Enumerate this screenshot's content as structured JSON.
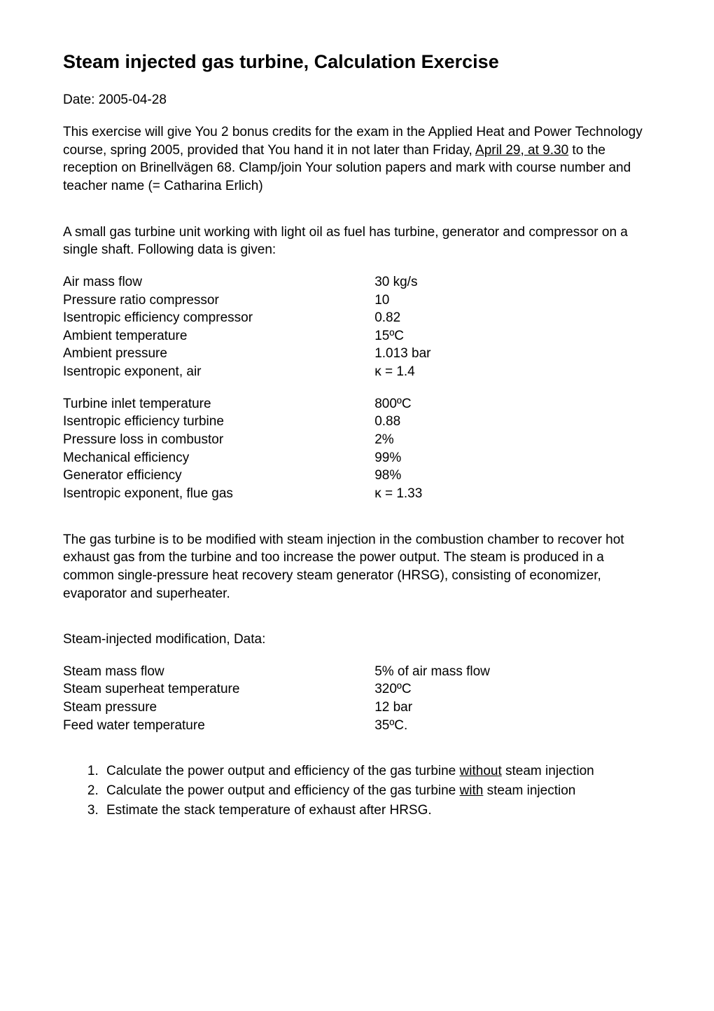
{
  "title": "Steam injected gas turbine, Calculation Exercise",
  "date_line": "Date: 2005-04-28",
  "intro_part1": "This exercise will give You 2 bonus credits for the exam in the Applied Heat and Power Technology course, spring 2005, provided that You hand it in not later than Friday, ",
  "intro_underlined": "April 29, at 9.30",
  "intro_part2": " to the reception on Brinellvägen 68. Clamp/join Your solution papers and mark with course number and teacher name (= Catharina Erlich)",
  "gt_desc": "A small gas turbine unit working with light oil as fuel has turbine, generator and compressor on a single shaft. Following data is given:",
  "block1": [
    {
      "label": "Air mass flow",
      "value": "30 kg/s"
    },
    {
      "label": "Pressure ratio compressor",
      "value": "10"
    },
    {
      "label": "Isentropic efficiency compressor",
      "value": "0.82"
    },
    {
      "label": "Ambient temperature",
      "value": "15ºC"
    },
    {
      "label": "Ambient pressure",
      "value": "1.013 bar"
    },
    {
      "label": "Isentropic exponent, air",
      "value": "κ = 1.4"
    }
  ],
  "block2": [
    {
      "label": "Turbine inlet temperature",
      "value": "800ºC"
    },
    {
      "label": "Isentropic efficiency turbine",
      "value": "0.88"
    },
    {
      "label": "Pressure loss in combustor",
      "value": "2%"
    },
    {
      "label": "Mechanical efficiency",
      "value": "99%"
    },
    {
      "label": "Generator efficiency",
      "value": "98%"
    },
    {
      "label": "Isentropic exponent, flue gas",
      "value": "κ = 1.33"
    }
  ],
  "mod_desc": "The gas turbine is to be modified with steam injection in the combustion chamber to recover hot exhaust gas from the turbine and too increase the power output. The steam is produced in a common single-pressure heat recovery steam generator (HRSG), consisting of economizer, evaporator and superheater.",
  "steam_heading": "Steam-injected modification, Data:",
  "block3": [
    {
      "label": "Steam mass flow",
      "value": "5% of air mass flow"
    },
    {
      "label": "Steam superheat temperature",
      "value": "320ºC"
    },
    {
      "label": "Steam pressure",
      "value": "12 bar"
    },
    {
      "label": "Feed water temperature",
      "value": "35ºC."
    }
  ],
  "q1_a": "Calculate the power output and efficiency of the gas turbine ",
  "q1_u": "without",
  "q1_b": " steam injection",
  "q2_a": "Calculate the power output and efficiency of the gas turbine ",
  "q2_u": "with",
  "q2_b": " steam injection",
  "q3": "Estimate the stack temperature of exhaust after HRSG."
}
